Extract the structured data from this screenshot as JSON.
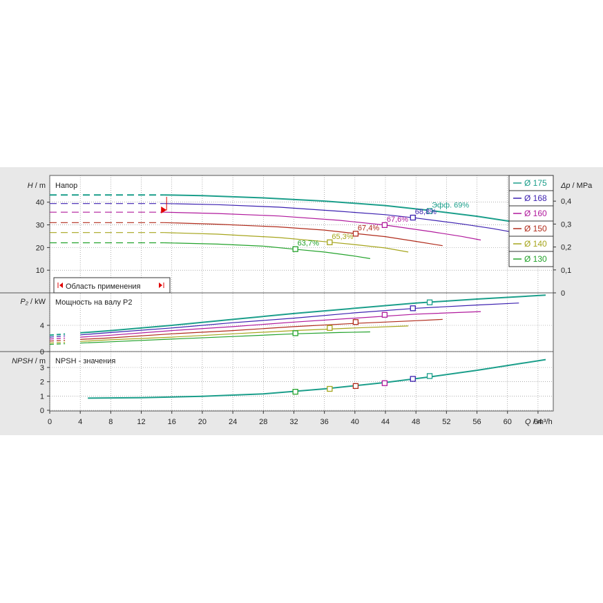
{
  "chart_data": {
    "type": "line",
    "x_axis": {
      "label_q": "Q",
      "label_unit": " / m³/h",
      "ticks": [
        "0",
        "4",
        "8",
        "12",
        "16",
        "20",
        "24",
        "28",
        "32",
        "36",
        "40",
        "44",
        "48",
        "52",
        "56",
        "60",
        "64"
      ],
      "range": [
        0,
        66
      ]
    },
    "colors": {
      "175": "#1a9e8a",
      "168": "#3b1fb0",
      "160": "#b0189c",
      "150": "#b02a1a",
      "140": "#a6a51c",
      "130": "#22a22a",
      "grid": "#7a7a7a",
      "marker_red": "#e00000"
    },
    "legend": {
      "placement": "top-right",
      "entries": [
        {
          "key": "175",
          "label": "Ø 175"
        },
        {
          "key": "168",
          "label": "Ø 168"
        },
        {
          "key": "160",
          "label": "Ø 160"
        },
        {
          "key": "150",
          "label": "Ø 150"
        },
        {
          "key": "140",
          "label": "Ø 140"
        },
        {
          "key": "130",
          "label": "Ø 130"
        }
      ]
    },
    "panels": {
      "head": {
        "title": "Напор",
        "ylabel_sym": "H",
        "ylabel_unit": " / m",
        "y_ticks": [
          "10",
          "20",
          "30",
          "40"
        ],
        "ylim": [
          0,
          50
        ],
        "right_label_sym": "Δp",
        "right_label_unit": " / MPa",
        "right_ticks": [
          "0",
          "0,1",
          "0,2",
          "0,3",
          "0,4"
        ],
        "application_range_label": "Область применения",
        "application_range_q": [
          15.5,
          64.8
        ],
        "series": [
          {
            "key": "175",
            "dashed": [
              [
                0,
                43.2
              ],
              [
                15,
                43.2
              ]
            ],
            "solid": [
              [
                15,
                43.2
              ],
              [
                20,
                42.9
              ],
              [
                28,
                41.9
              ],
              [
                36,
                40.5
              ],
              [
                44,
                38.5
              ],
              [
                50,
                36.3
              ],
              [
                56,
                33.8
              ],
              [
                62,
                30.7
              ],
              [
                65,
                28.8
              ]
            ]
          },
          {
            "key": "168",
            "dashed": [
              [
                0,
                39.4
              ],
              [
                15,
                39.4
              ]
            ],
            "solid": [
              [
                15,
                39.4
              ],
              [
                22,
                38.9
              ],
              [
                30,
                37.8
              ],
              [
                38,
                36.0
              ],
              [
                44,
                34.5
              ],
              [
                48,
                33.0
              ],
              [
                54,
                30.4
              ],
              [
                58,
                28.4
              ],
              [
                61.5,
                26.3
              ]
            ]
          },
          {
            "key": "160",
            "dashed": [
              [
                0,
                35.6
              ],
              [
                15,
                35.6
              ]
            ],
            "solid": [
              [
                15,
                35.6
              ],
              [
                22,
                35.0
              ],
              [
                30,
                33.9
              ],
              [
                38,
                32.0
              ],
              [
                44,
                29.9
              ],
              [
                50,
                27.0
              ],
              [
                54,
                24.9
              ],
              [
                56.5,
                23.3
              ]
            ]
          },
          {
            "key": "150",
            "dashed": [
              [
                0,
                31.0
              ],
              [
                15,
                31.0
              ]
            ],
            "solid": [
              [
                15,
                31.0
              ],
              [
                22,
                30.3
              ],
              [
                30,
                29.1
              ],
              [
                36,
                27.7
              ],
              [
                40,
                26.2
              ],
              [
                44,
                24.8
              ],
              [
                48,
                22.7
              ],
              [
                51.5,
                20.8
              ]
            ]
          },
          {
            "key": "140",
            "dashed": [
              [
                0,
                26.6
              ],
              [
                15,
                26.6
              ]
            ],
            "solid": [
              [
                15,
                26.6
              ],
              [
                22,
                25.9
              ],
              [
                30,
                24.4
              ],
              [
                36,
                22.6
              ],
              [
                40,
                21.3
              ],
              [
                44,
                19.8
              ],
              [
                47,
                18.0
              ]
            ]
          },
          {
            "key": "130",
            "dashed": [
              [
                0,
                22.1
              ],
              [
                15,
                22.1
              ]
            ],
            "solid": [
              [
                15,
                22.1
              ],
              [
                22,
                21.5
              ],
              [
                28,
                20.6
              ],
              [
                32,
                19.3
              ],
              [
                36,
                18.0
              ],
              [
                40,
                16.2
              ],
              [
                42,
                15.1
              ]
            ]
          }
        ],
        "efficiency_points": [
          {
            "key": "175",
            "q": 49.8,
            "h": 36.1,
            "label": "Эфф.  69%"
          },
          {
            "key": "168",
            "q": 47.6,
            "h": 33.2,
            "label": "68,8%"
          },
          {
            "key": "160",
            "q": 43.9,
            "h": 29.9,
            "label": "67,6%"
          },
          {
            "key": "150",
            "q": 40.1,
            "h": 26.1,
            "label": "67,4%"
          },
          {
            "key": "140",
            "q": 36.7,
            "h": 22.3,
            "label": "65,3%"
          },
          {
            "key": "130",
            "q": 32.2,
            "h": 19.3,
            "label": "63,7%"
          }
        ]
      },
      "power": {
        "title": "Мощность на валу P2",
        "ylabel_sym": "P₂",
        "ylabel_unit": " / kW",
        "y_ticks": [
          "0",
          "4"
        ],
        "ylim": [
          0,
          8.5
        ],
        "series": [
          {
            "key": "175",
            "points": [
              [
                0,
                2.5
              ],
              [
                8,
                3.2
              ],
              [
                16,
                4.0
              ],
              [
                24,
                4.9
              ],
              [
                32,
                5.8
              ],
              [
                40,
                6.6
              ],
              [
                48,
                7.4
              ],
              [
                56,
                8.0
              ],
              [
                65,
                8.6
              ]
            ]
          },
          {
            "key": "168",
            "points": [
              [
                0,
                2.2
              ],
              [
                8,
                2.9
              ],
              [
                16,
                3.6
              ],
              [
                24,
                4.4
              ],
              [
                32,
                5.1
              ],
              [
                40,
                5.9
              ],
              [
                48,
                6.6
              ],
              [
                56,
                7.1
              ],
              [
                61.5,
                7.4
              ]
            ]
          },
          {
            "key": "160",
            "points": [
              [
                0,
                1.9
              ],
              [
                8,
                2.5
              ],
              [
                16,
                3.2
              ],
              [
                24,
                3.8
              ],
              [
                32,
                4.5
              ],
              [
                40,
                5.1
              ],
              [
                48,
                5.7
              ],
              [
                56.5,
                6.1
              ]
            ]
          },
          {
            "key": "150",
            "points": [
              [
                0,
                1.6
              ],
              [
                8,
                2.1
              ],
              [
                16,
                2.7
              ],
              [
                24,
                3.2
              ],
              [
                32,
                3.8
              ],
              [
                40,
                4.3
              ],
              [
                48,
                4.7
              ],
              [
                51.5,
                4.9
              ]
            ]
          },
          {
            "key": "140",
            "points": [
              [
                0,
                1.3
              ],
              [
                8,
                1.8
              ],
              [
                16,
                2.2
              ],
              [
                24,
                2.7
              ],
              [
                32,
                3.2
              ],
              [
                40,
                3.6
              ],
              [
                47,
                3.9
              ]
            ]
          },
          {
            "key": "130",
            "points": [
              [
                0,
                1.1
              ],
              [
                8,
                1.5
              ],
              [
                16,
                1.9
              ],
              [
                24,
                2.3
              ],
              [
                32,
                2.7
              ],
              [
                38,
                2.9
              ],
              [
                42,
                3.0
              ]
            ]
          }
        ],
        "markers": [
          {
            "key": "175",
            "q": 49.8,
            "v": 7.5
          },
          {
            "key": "168",
            "q": 47.6,
            "v": 6.6
          },
          {
            "key": "160",
            "q": 43.9,
            "v": 5.6
          },
          {
            "key": "150",
            "q": 40.1,
            "v": 4.5
          },
          {
            "key": "140",
            "q": 36.7,
            "v": 3.6
          },
          {
            "key": "130",
            "q": 32.2,
            "v": 2.8
          }
        ]
      },
      "npsh": {
        "title": "NPSH - значения",
        "ylabel_sym": "NPSH",
        "ylabel_unit": " / m",
        "y_ticks": [
          "0",
          "1",
          "2",
          "3"
        ],
        "ylim": [
          0,
          3.7
        ],
        "series": [
          {
            "key": "175",
            "points": [
              [
                5,
                0.85
              ],
              [
                12,
                0.88
              ],
              [
                20,
                0.98
              ],
              [
                28,
                1.15
              ],
              [
                36,
                1.5
              ],
              [
                44,
                1.95
              ],
              [
                50,
                2.35
              ],
              [
                56,
                2.8
              ],
              [
                62,
                3.3
              ],
              [
                65,
                3.55
              ]
            ]
          }
        ],
        "markers": [
          {
            "key": "130",
            "q": 32.2,
            "v": 1.3
          },
          {
            "key": "140",
            "q": 36.7,
            "v": 1.5
          },
          {
            "key": "150",
            "q": 40.1,
            "v": 1.7
          },
          {
            "key": "160",
            "q": 43.9,
            "v": 1.9
          },
          {
            "key": "168",
            "q": 47.6,
            "v": 2.2
          },
          {
            "key": "175",
            "q": 49.8,
            "v": 2.4
          }
        ]
      }
    }
  }
}
